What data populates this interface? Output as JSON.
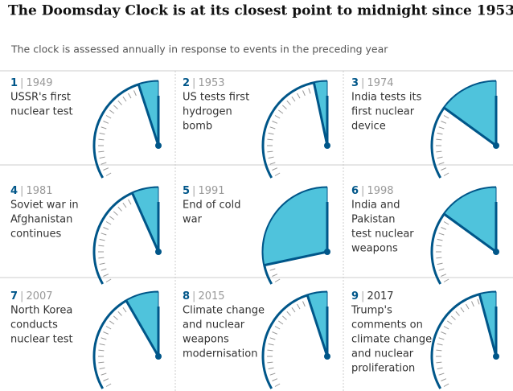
{
  "title": "The Doomsday Clock is at its closest point to midnight since 1953",
  "subtitle": "The clock is assessed annually in response to events in the preceding year",
  "panels": [
    {
      "number": 1,
      "year": "1949",
      "lines": [
        "USSR's first",
        "nuclear test"
      ],
      "minutes": 3
    },
    {
      "number": 2,
      "year": "1953",
      "lines": [
        "US tests first",
        "hydrogen",
        "bomb"
      ],
      "minutes": 2
    },
    {
      "number": 3,
      "year": "1974",
      "lines": [
        "India tests its",
        "first nuclear",
        "device"
      ],
      "minutes": 9
    },
    {
      "number": 4,
      "year": "1981",
      "lines": [
        "Soviet war in",
        "Afghanistan",
        "continues"
      ],
      "minutes": 4
    },
    {
      "number": 5,
      "year": "1991",
      "lines": [
        "End of cold",
        "war"
      ],
      "minutes": 17
    },
    {
      "number": 6,
      "year": "1998",
      "lines": [
        "India and",
        "Pakistan",
        "test nuclear",
        "weapons"
      ],
      "minutes": 9
    },
    {
      "number": 7,
      "year": "2007",
      "lines": [
        "North Korea",
        "conducts",
        "nuclear test"
      ],
      "minutes": 5
    },
    {
      "number": 8,
      "year": "2015",
      "lines": [
        "Climate change",
        "and nuclear",
        "weapons",
        "modernisation"
      ],
      "minutes": 3
    },
    {
      "number": 9,
      "year": "2017",
      "lines": [
        "Trump's",
        "comments on",
        "climate change",
        "and nuclear",
        "proliferation"
      ],
      "minutes": 2.5
    }
  ]
}
